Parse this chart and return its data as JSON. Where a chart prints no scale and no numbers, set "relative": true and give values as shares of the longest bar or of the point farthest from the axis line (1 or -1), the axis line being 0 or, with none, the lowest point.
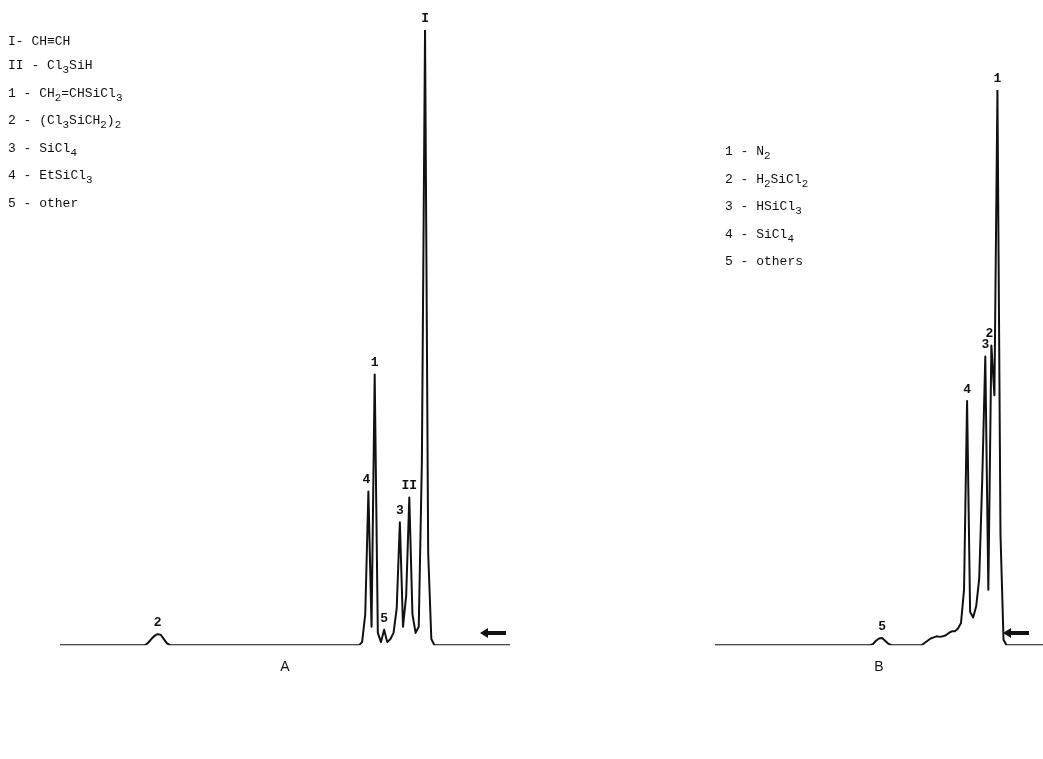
{
  "chart_data": [
    {
      "type": "line",
      "title": "A",
      "relative": true,
      "annotations": [
        "I- CH≡CH",
        "II - Cl$_{3}$SiH",
        "1 - CH$_{2}$=CHSiCl$_{3}$",
        "2 - (Cl$_{3}$SiCH$_{2}$)$_{2}$",
        "3 - SiCl$_{4}$",
        "4 - EtSiCl$_{3}$",
        "5 - other",
        {
          "text": "2",
          "y": 0.018
        },
        {
          "text": "4",
          "y": 0.25
        },
        {
          "text": "1",
          "y": 0.44
        },
        {
          "text": "5",
          "y": 0.025
        },
        {
          "text": "3",
          "y": 0.2
        },
        {
          "text": "II",
          "y": 0.24
        },
        {
          "text": "I",
          "y": 1
        }
      ],
      "categories": [
        null,
        null,
        null,
        null,
        null,
        null,
        null,
        null,
        null,
        null,
        null,
        null,
        null,
        null,
        null,
        null,
        null,
        null,
        null,
        null,
        null,
        null,
        null,
        null,
        null,
        null,
        null,
        null,
        null,
        null,
        null,
        null,
        null,
        null,
        null,
        null,
        null,
        null,
        null,
        null,
        null,
        null,
        null,
        null,
        null,
        null,
        null,
        null,
        null,
        null,
        null,
        null,
        null,
        null,
        null,
        null,
        null,
        null,
        null,
        null,
        null,
        null,
        null,
        null,
        null,
        null,
        null,
        null,
        null,
        null,
        null,
        null,
        null,
        null,
        null,
        null,
        null,
        null,
        null,
        null,
        null,
        null,
        null,
        null,
        null,
        null,
        null,
        null,
        null,
        null,
        null,
        null,
        null,
        null,
        null,
        null,
        null,
        null,
        null,
        null,
        null,
        null,
        null,
        null,
        null,
        null,
        null,
        null,
        null,
        null,
        null,
        null,
        null,
        null,
        null,
        null,
        null,
        null,
        null,
        null,
        null,
        null,
        null,
        null,
        null,
        null,
        null,
        null,
        null,
        null,
        null,
        null,
        null,
        null,
        null,
        null,
        null,
        null,
        null,
        null,
        null,
        null,
        null,
        null
      ],
      "series": [
        {
          "color": "#111111",
          "values": [
            0,
            0,
            0,
            0,
            0,
            0,
            0,
            0,
            0,
            0,
            0,
            0,
            0,
            0,
            0,
            0,
            0,
            0,
            0,
            0,
            0,
            0,
            0,
            0,
            0,
            0,
            0,
            0,
            0.004,
            0.01,
            0.015,
            0.018,
            0.017,
            0.01,
            0.003,
            0,
            0,
            0,
            0,
            0,
            0,
            0,
            0,
            0,
            0,
            0,
            0,
            0,
            0,
            0,
            0,
            0,
            0,
            0,
            0,
            0,
            0,
            0,
            0,
            0,
            0,
            0,
            0,
            0,
            0,
            0,
            0,
            0,
            0,
            0,
            0,
            0,
            0,
            0,
            0,
            0,
            0,
            0,
            0,
            0,
            0,
            0,
            0,
            0,
            0,
            0,
            0,
            0,
            0,
            0,
            0,
            0,
            0,
            0,
            0,
            0,
            0.005,
            0.05,
            0.25,
            0.03,
            0.44,
            0.02,
            0.005,
            0.025,
            0.005,
            0.01,
            0.02,
            0.06,
            0.2,
            0.03,
            0.08,
            0.24,
            0.05,
            0.02,
            0.03,
            0.3,
            1,
            0.15,
            0.01,
            0,
            0,
            0,
            0,
            0,
            0,
            0,
            0,
            0,
            0,
            0,
            0,
            0,
            0,
            0,
            0,
            0,
            0,
            0,
            0,
            0,
            0,
            0,
            0,
            0
          ]
        }
      ]
    },
    {
      "type": "line",
      "title": "B",
      "relative": true,
      "annotations": [
        "1 - N$_{2}$",
        "2 - H$_{2}$SiCl$_{2}$",
        "3 - HSiCl$_{3}$",
        "4 - SiCl$_{4}$",
        "5 - others",
        {
          "text": "5",
          "y": 0.013
        },
        {
          "text": "4",
          "y": 0.44
        },
        {
          "text": "3",
          "y": 0.52
        },
        {
          "text": "2",
          "y": 0.54
        },
        {
          "text": "1",
          "y": 1
        }
      ],
      "categories": [
        null,
        null,
        null,
        null,
        null,
        null,
        null,
        null,
        null,
        null,
        null,
        null,
        null,
        null,
        null,
        null,
        null,
        null,
        null,
        null,
        null,
        null,
        null,
        null,
        null,
        null,
        null,
        null,
        null,
        null,
        null,
        null,
        null,
        null,
        null,
        null,
        null,
        null,
        null,
        null,
        null,
        null,
        null,
        null,
        null,
        null,
        null,
        null,
        null,
        null,
        null,
        null,
        null,
        null,
        null,
        null,
        null,
        null,
        null,
        null,
        null,
        null,
        null,
        null,
        null,
        null,
        null,
        null,
        null,
        null,
        null,
        null,
        null,
        null,
        null,
        null,
        null,
        null,
        null,
        null,
        null,
        null,
        null,
        null,
        null,
        null,
        null,
        null,
        null,
        null,
        null,
        null,
        null,
        null,
        null,
        null,
        null,
        null,
        null,
        null,
        null,
        null,
        null,
        null,
        null,
        null,
        null,
        null,
        null
      ],
      "series": [
        {
          "color": "#111111",
          "values": [
            0,
            0,
            0,
            0,
            0,
            0,
            0,
            0,
            0,
            0,
            0,
            0,
            0,
            0,
            0,
            0,
            0,
            0,
            0,
            0,
            0,
            0,
            0,
            0,
            0,
            0,
            0,
            0,
            0,
            0,
            0,
            0,
            0,
            0,
            0,
            0,
            0,
            0,
            0,
            0,
            0,
            0,
            0,
            0,
            0,
            0,
            0,
            0,
            0,
            0,
            0,
            0,
            0.002,
            0.008,
            0.012,
            0.013,
            0.008,
            0.003,
            0,
            0,
            0,
            0,
            0,
            0,
            0,
            0,
            0,
            0,
            0,
            0.004,
            0.008,
            0.012,
            0.014,
            0.016,
            0.015,
            0.016,
            0.018,
            0.022,
            0.025,
            0.025,
            0.03,
            0.04,
            0.1,
            0.44,
            0.06,
            0.05,
            0.07,
            0.12,
            0.3,
            0.52,
            0.1,
            0.54,
            0.45,
            1,
            0.2,
            0.01,
            0,
            0,
            0,
            0,
            0,
            0,
            0,
            0,
            0,
            0,
            0,
            0,
            0
          ]
        }
      ]
    }
  ]
}
